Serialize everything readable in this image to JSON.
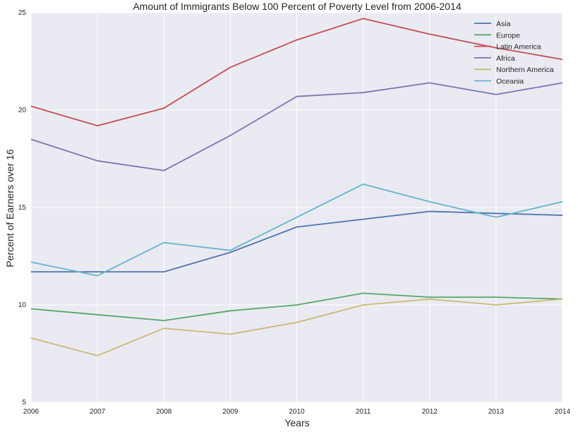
{
  "chart_data": {
    "type": "line",
    "title": "Amount of Immigrants Below 100 Percent of Poverty Level from 2006-2014",
    "xlabel": "Years",
    "ylabel": "Percent of Earners over 16",
    "x": [
      "2006",
      "2007",
      "2008",
      "2009",
      "2010",
      "2011",
      "2012",
      "2013",
      "2014"
    ],
    "xlim": [
      2006,
      2014
    ],
    "ylim": [
      5,
      25
    ],
    "yticks": [
      "5",
      "10",
      "15",
      "20",
      "25"
    ],
    "grid": true,
    "legend_position": "top-right",
    "background_color": "#eaeaf2",
    "grid_color": "#ffffff",
    "series": [
      {
        "name": "Asia",
        "color": "#4c72b0",
        "values": [
          11.7,
          11.7,
          11.7,
          12.7,
          14.0,
          14.4,
          14.8,
          14.7,
          14.6
        ]
      },
      {
        "name": "Europe",
        "color": "#55a868",
        "values": [
          9.8,
          9.5,
          9.2,
          9.7,
          10.0,
          10.6,
          10.4,
          10.4,
          10.3
        ]
      },
      {
        "name": "Latin America",
        "color": "#c44e52",
        "values": [
          20.2,
          19.2,
          20.1,
          22.2,
          23.6,
          24.7,
          23.9,
          23.2,
          22.6
        ]
      },
      {
        "name": "Africa",
        "color": "#8172b2",
        "values": [
          18.5,
          17.4,
          16.9,
          18.7,
          20.7,
          20.9,
          21.4,
          20.8,
          21.4
        ]
      },
      {
        "name": "Northern America",
        "color": "#ccb974",
        "values": [
          8.3,
          7.4,
          8.8,
          8.5,
          9.1,
          10.0,
          10.3,
          10.0,
          10.3
        ]
      },
      {
        "name": "Oceania",
        "color": "#64b5cd",
        "values": [
          12.2,
          11.5,
          13.2,
          12.8,
          14.5,
          16.2,
          15.3,
          14.5,
          15.3
        ]
      }
    ]
  }
}
